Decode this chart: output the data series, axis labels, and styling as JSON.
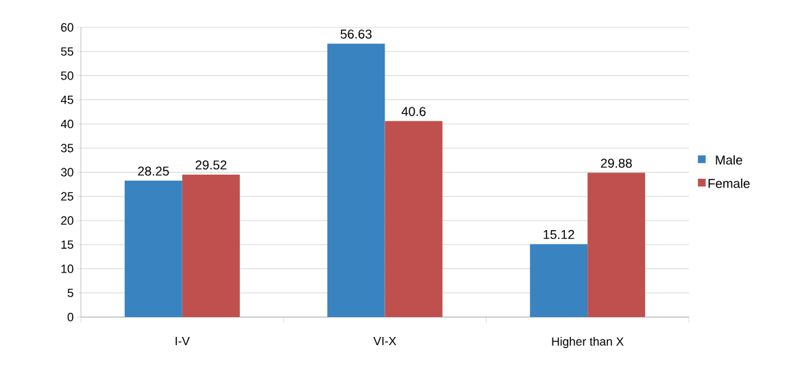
{
  "chart_data": {
    "type": "bar",
    "categories": [
      "I-V",
      "VI-X",
      "Higher than X"
    ],
    "series": [
      {
        "name": "Male",
        "color": "#3a83c1",
        "values": [
          28.25,
          56.63,
          15.12
        ]
      },
      {
        "name": "Female",
        "color": "#c0504d",
        "values": [
          29.52,
          40.6,
          29.88
        ]
      }
    ],
    "ylim": [
      0,
      60
    ],
    "yticks": [
      0,
      5,
      10,
      15,
      20,
      25,
      30,
      35,
      40,
      45,
      50,
      55,
      60
    ],
    "grid": "y",
    "legend": "right",
    "data_labels": true
  }
}
